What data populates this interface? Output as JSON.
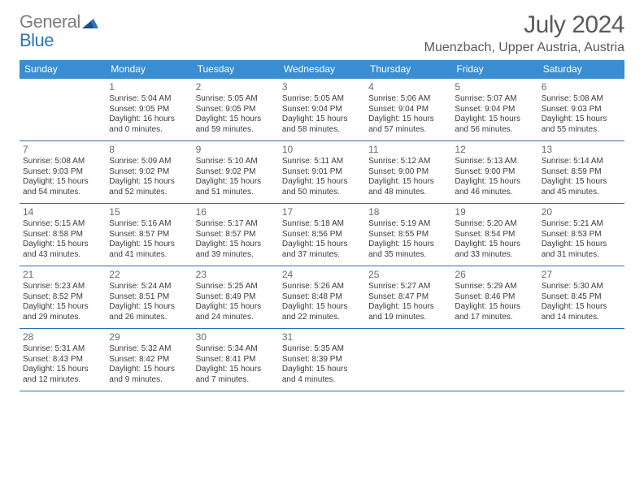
{
  "brand": {
    "general": "General",
    "blue": "Blue"
  },
  "colors": {
    "header_bg": "#3a8dd0",
    "header_fg": "#ffffff",
    "row_border": "#2f6fa8",
    "text": "#3c3c3c",
    "muted": "#6b6b6b",
    "title": "#5a5a5a",
    "logo_gray": "#7e7e7e",
    "logo_blue": "#2f75b5"
  },
  "title": {
    "month": "July 2024",
    "location": "Muenzbach, Upper Austria, Austria"
  },
  "weekdays": [
    "Sunday",
    "Monday",
    "Tuesday",
    "Wednesday",
    "Thursday",
    "Friday",
    "Saturday"
  ],
  "weeks": [
    [
      null,
      {
        "n": "1",
        "sunrise": "Sunrise: 5:04 AM",
        "sunset": "Sunset: 9:05 PM",
        "daylight": "Daylight: 16 hours and 0 minutes."
      },
      {
        "n": "2",
        "sunrise": "Sunrise: 5:05 AM",
        "sunset": "Sunset: 9:05 PM",
        "daylight": "Daylight: 15 hours and 59 minutes."
      },
      {
        "n": "3",
        "sunrise": "Sunrise: 5:05 AM",
        "sunset": "Sunset: 9:04 PM",
        "daylight": "Daylight: 15 hours and 58 minutes."
      },
      {
        "n": "4",
        "sunrise": "Sunrise: 5:06 AM",
        "sunset": "Sunset: 9:04 PM",
        "daylight": "Daylight: 15 hours and 57 minutes."
      },
      {
        "n": "5",
        "sunrise": "Sunrise: 5:07 AM",
        "sunset": "Sunset: 9:04 PM",
        "daylight": "Daylight: 15 hours and 56 minutes."
      },
      {
        "n": "6",
        "sunrise": "Sunrise: 5:08 AM",
        "sunset": "Sunset: 9:03 PM",
        "daylight": "Daylight: 15 hours and 55 minutes."
      }
    ],
    [
      {
        "n": "7",
        "sunrise": "Sunrise: 5:08 AM",
        "sunset": "Sunset: 9:03 PM",
        "daylight": "Daylight: 15 hours and 54 minutes."
      },
      {
        "n": "8",
        "sunrise": "Sunrise: 5:09 AM",
        "sunset": "Sunset: 9:02 PM",
        "daylight": "Daylight: 15 hours and 52 minutes."
      },
      {
        "n": "9",
        "sunrise": "Sunrise: 5:10 AM",
        "sunset": "Sunset: 9:02 PM",
        "daylight": "Daylight: 15 hours and 51 minutes."
      },
      {
        "n": "10",
        "sunrise": "Sunrise: 5:11 AM",
        "sunset": "Sunset: 9:01 PM",
        "daylight": "Daylight: 15 hours and 50 minutes."
      },
      {
        "n": "11",
        "sunrise": "Sunrise: 5:12 AM",
        "sunset": "Sunset: 9:00 PM",
        "daylight": "Daylight: 15 hours and 48 minutes."
      },
      {
        "n": "12",
        "sunrise": "Sunrise: 5:13 AM",
        "sunset": "Sunset: 9:00 PM",
        "daylight": "Daylight: 15 hours and 46 minutes."
      },
      {
        "n": "13",
        "sunrise": "Sunrise: 5:14 AM",
        "sunset": "Sunset: 8:59 PM",
        "daylight": "Daylight: 15 hours and 45 minutes."
      }
    ],
    [
      {
        "n": "14",
        "sunrise": "Sunrise: 5:15 AM",
        "sunset": "Sunset: 8:58 PM",
        "daylight": "Daylight: 15 hours and 43 minutes."
      },
      {
        "n": "15",
        "sunrise": "Sunrise: 5:16 AM",
        "sunset": "Sunset: 8:57 PM",
        "daylight": "Daylight: 15 hours and 41 minutes."
      },
      {
        "n": "16",
        "sunrise": "Sunrise: 5:17 AM",
        "sunset": "Sunset: 8:57 PM",
        "daylight": "Daylight: 15 hours and 39 minutes."
      },
      {
        "n": "17",
        "sunrise": "Sunrise: 5:18 AM",
        "sunset": "Sunset: 8:56 PM",
        "daylight": "Daylight: 15 hours and 37 minutes."
      },
      {
        "n": "18",
        "sunrise": "Sunrise: 5:19 AM",
        "sunset": "Sunset: 8:55 PM",
        "daylight": "Daylight: 15 hours and 35 minutes."
      },
      {
        "n": "19",
        "sunrise": "Sunrise: 5:20 AM",
        "sunset": "Sunset: 8:54 PM",
        "daylight": "Daylight: 15 hours and 33 minutes."
      },
      {
        "n": "20",
        "sunrise": "Sunrise: 5:21 AM",
        "sunset": "Sunset: 8:53 PM",
        "daylight": "Daylight: 15 hours and 31 minutes."
      }
    ],
    [
      {
        "n": "21",
        "sunrise": "Sunrise: 5:23 AM",
        "sunset": "Sunset: 8:52 PM",
        "daylight": "Daylight: 15 hours and 29 minutes."
      },
      {
        "n": "22",
        "sunrise": "Sunrise: 5:24 AM",
        "sunset": "Sunset: 8:51 PM",
        "daylight": "Daylight: 15 hours and 26 minutes."
      },
      {
        "n": "23",
        "sunrise": "Sunrise: 5:25 AM",
        "sunset": "Sunset: 8:49 PM",
        "daylight": "Daylight: 15 hours and 24 minutes."
      },
      {
        "n": "24",
        "sunrise": "Sunrise: 5:26 AM",
        "sunset": "Sunset: 8:48 PM",
        "daylight": "Daylight: 15 hours and 22 minutes."
      },
      {
        "n": "25",
        "sunrise": "Sunrise: 5:27 AM",
        "sunset": "Sunset: 8:47 PM",
        "daylight": "Daylight: 15 hours and 19 minutes."
      },
      {
        "n": "26",
        "sunrise": "Sunrise: 5:29 AM",
        "sunset": "Sunset: 8:46 PM",
        "daylight": "Daylight: 15 hours and 17 minutes."
      },
      {
        "n": "27",
        "sunrise": "Sunrise: 5:30 AM",
        "sunset": "Sunset: 8:45 PM",
        "daylight": "Daylight: 15 hours and 14 minutes."
      }
    ],
    [
      {
        "n": "28",
        "sunrise": "Sunrise: 5:31 AM",
        "sunset": "Sunset: 8:43 PM",
        "daylight": "Daylight: 15 hours and 12 minutes."
      },
      {
        "n": "29",
        "sunrise": "Sunrise: 5:32 AM",
        "sunset": "Sunset: 8:42 PM",
        "daylight": "Daylight: 15 hours and 9 minutes."
      },
      {
        "n": "30",
        "sunrise": "Sunrise: 5:34 AM",
        "sunset": "Sunset: 8:41 PM",
        "daylight": "Daylight: 15 hours and 7 minutes."
      },
      {
        "n": "31",
        "sunrise": "Sunrise: 5:35 AM",
        "sunset": "Sunset: 8:39 PM",
        "daylight": "Daylight: 15 hours and 4 minutes."
      },
      null,
      null,
      null
    ]
  ]
}
